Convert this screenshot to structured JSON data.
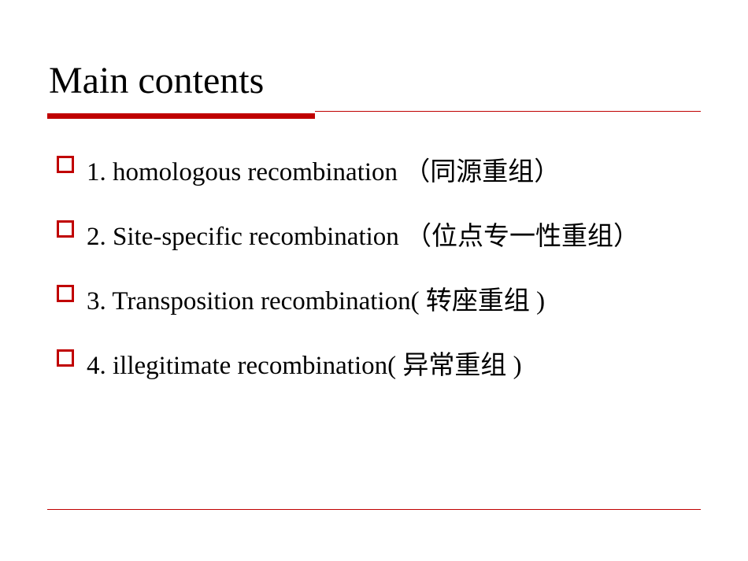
{
  "slide": {
    "title": "Main  contents",
    "title_fontsize": 48,
    "title_color": "#000000",
    "background_color": "#ffffff",
    "accent_color": "#c00000",
    "underline": {
      "thick_width": 340,
      "thick_height": 7,
      "thin_height": 1,
      "color": "#c00000"
    },
    "bullet": {
      "size": 22,
      "border_width": 3,
      "border_color": "#c00000",
      "shape": "square-outline"
    },
    "items": [
      {
        "text": "1. homologous recombination （同源重组）"
      },
      {
        "text": "2. Site-specific recombination （位点专一性重组）"
      },
      {
        "text": "3. Transposition recombination( 转座重组 )"
      },
      {
        "text": "4. illegitimate recombination( 异常重组 )"
      }
    ],
    "body_fontsize": 33,
    "body_color": "#000000",
    "bottom_line_color": "#c00000"
  }
}
